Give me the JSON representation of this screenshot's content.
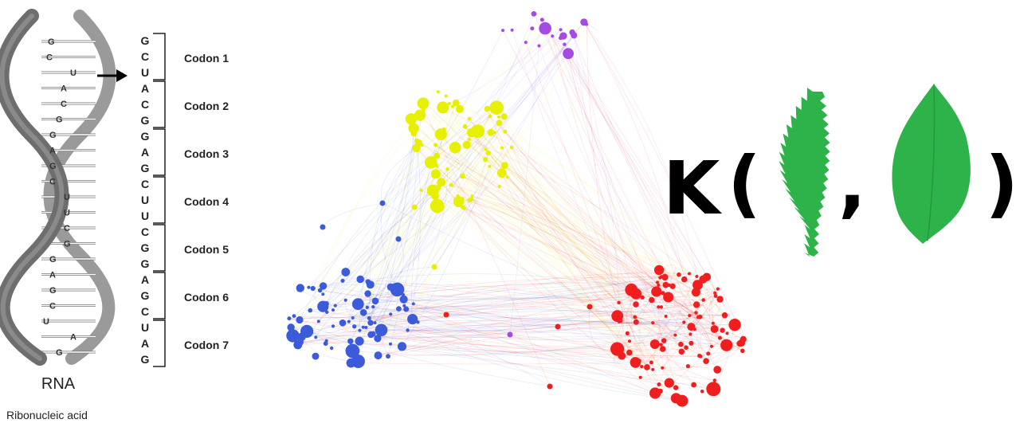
{
  "rna_panel": {
    "title": "RNA",
    "subtitle": "Ribonucleic acid",
    "strand_letters": [
      "G",
      "C",
      "U",
      "A",
      "C",
      "G",
      "G",
      "A",
      "G",
      "C",
      "U",
      "U",
      "C",
      "G",
      "G",
      "A",
      "G",
      "C",
      "U",
      "A",
      "G"
    ],
    "codons": [
      {
        "label": "Codon 1",
        "bases": [
          "G",
          "C",
          "U"
        ]
      },
      {
        "label": "Codon 2",
        "bases": [
          "A",
          "C",
          "G"
        ]
      },
      {
        "label": "Codon 3",
        "bases": [
          "G",
          "A",
          "G"
        ]
      },
      {
        "label": "Codon 4",
        "bases": [
          "C",
          "U",
          "U"
        ]
      },
      {
        "label": "Codon 5",
        "bases": [
          "C",
          "G",
          "G"
        ]
      },
      {
        "label": "Codon 6",
        "bases": [
          "A",
          "G",
          "C"
        ]
      },
      {
        "label": "Codon 7",
        "bases": [
          "U",
          "A",
          "G"
        ]
      }
    ],
    "helix_color": "#6e6e6e"
  },
  "network_panel": {
    "clusters": [
      {
        "name": "yellow",
        "color": "#e6f000"
      },
      {
        "name": "blue",
        "color": "#3b5bdb"
      },
      {
        "name": "red",
        "color": "#f01e1e"
      },
      {
        "name": "purple",
        "color": "#a64ae6"
      }
    ]
  },
  "kernel_panel": {
    "function": "K",
    "open_paren": "(",
    "comma": ",",
    "close_paren": ")",
    "leaf_color": "#2db34a",
    "leaf_icons": [
      "serrated-narrow-leaf-icon",
      "oval-leaf-icon"
    ]
  }
}
